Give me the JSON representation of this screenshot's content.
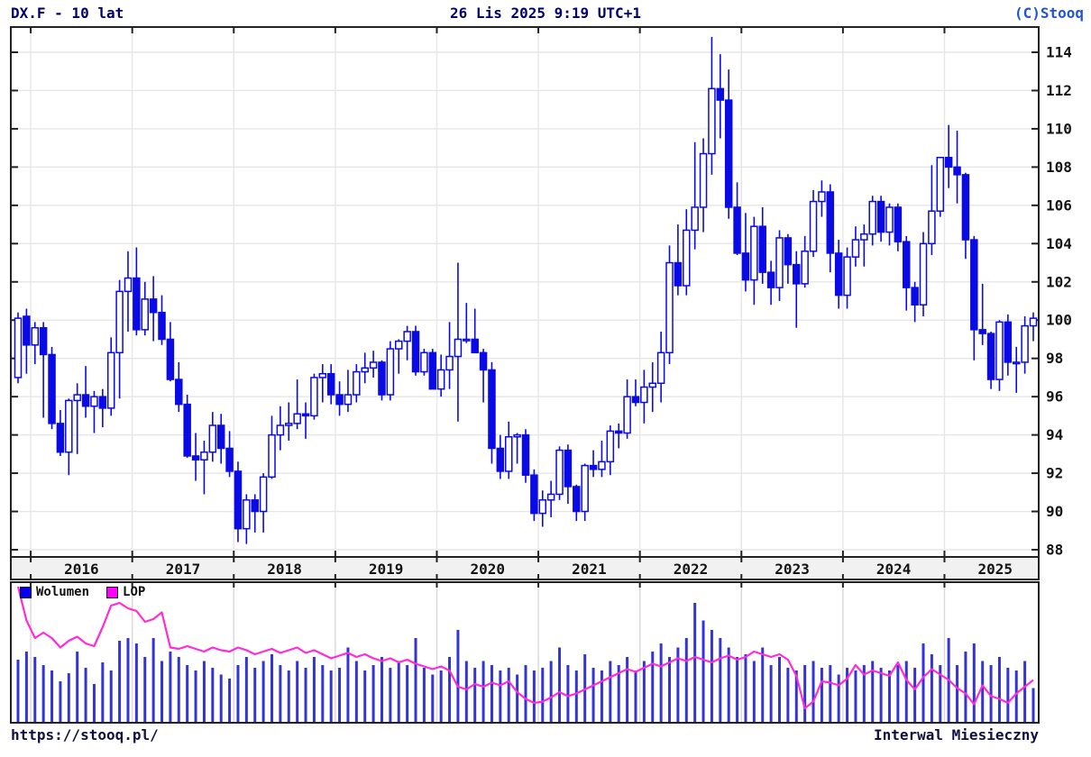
{
  "header": {
    "title": "DX.F - 10 lat",
    "timestamp": "26 Lis 2025 9:19 UTC+1",
    "copyright": "(C)Stooq"
  },
  "legend": {
    "volume_label": "Wolumen",
    "lop_label": "LOP"
  },
  "footer": {
    "url": "https://stooq.pl/",
    "interval": "Interwal Miesieczny"
  },
  "colors": {
    "candle": "#0a0ae6",
    "candle_up_fill": "#ffffff",
    "volume_bar": "#3434d4",
    "lop_line": "#ff2bd6",
    "lop_swatch": "#ff00ff",
    "grid": "#e6e6e6",
    "frame": "#222222",
    "band_bg": "#f1f1f1",
    "header_text": "#00006e",
    "copyright_text": "#2255cc",
    "axis_text": "#141414"
  },
  "chart_data": {
    "type": "candlestick+volume+line",
    "title": "DX.F - 10 lat",
    "interval": "monthly",
    "series_names": [
      "OHLC",
      "Wolumen",
      "LOP"
    ],
    "y_ticks": [
      88,
      90,
      92,
      94,
      96,
      98,
      100,
      102,
      104,
      106,
      108,
      110,
      112,
      114
    ],
    "y_range": [
      87.6,
      115.3
    ],
    "year_labels": [
      "2016",
      "2017",
      "2018",
      "2019",
      "2020",
      "2021",
      "2022",
      "2023",
      "2024",
      "2025"
    ],
    "volume_units": "relative-0-100",
    "lop_units": "relative-0-100",
    "months": [
      {
        "t": "2015-11",
        "o": 97.0,
        "h": 100.4,
        "l": 96.7,
        "c": 100.1,
        "v": 46,
        "lop": 100
      },
      {
        "t": "2015-12",
        "o": 100.2,
        "h": 100.6,
        "l": 97.2,
        "c": 98.7,
        "v": 52,
        "lop": 75
      },
      {
        "t": "2016-01",
        "o": 98.7,
        "h": 99.9,
        "l": 97.7,
        "c": 99.6,
        "v": 48,
        "lop": 62
      },
      {
        "t": "2016-02",
        "o": 99.6,
        "h": 99.9,
        "l": 94.9,
        "c": 98.2,
        "v": 42,
        "lop": 66
      },
      {
        "t": "2016-03",
        "o": 98.2,
        "h": 98.6,
        "l": 94.3,
        "c": 94.6,
        "v": 38,
        "lop": 62
      },
      {
        "t": "2016-04",
        "o": 94.6,
        "h": 95.3,
        "l": 92.9,
        "c": 93.1,
        "v": 30,
        "lop": 55
      },
      {
        "t": "2016-05",
        "o": 93.1,
        "h": 95.9,
        "l": 91.9,
        "c": 95.8,
        "v": 36,
        "lop": 60
      },
      {
        "t": "2016-06",
        "o": 95.8,
        "h": 96.7,
        "l": 93.0,
        "c": 96.1,
        "v": 52,
        "lop": 63
      },
      {
        "t": "2016-07",
        "o": 96.1,
        "h": 97.6,
        "l": 94.9,
        "c": 95.5,
        "v": 40,
        "lop": 58
      },
      {
        "t": "2016-08",
        "o": 95.5,
        "h": 96.3,
        "l": 94.1,
        "c": 96.0,
        "v": 28,
        "lop": 56
      },
      {
        "t": "2016-09",
        "o": 96.0,
        "h": 96.4,
        "l": 94.4,
        "c": 95.4,
        "v": 44,
        "lop": 70
      },
      {
        "t": "2016-10",
        "o": 95.4,
        "h": 99.1,
        "l": 95.0,
        "c": 98.3,
        "v": 38,
        "lop": 86
      },
      {
        "t": "2016-11",
        "o": 98.3,
        "h": 102.1,
        "l": 95.9,
        "c": 101.5,
        "v": 60,
        "lop": 88
      },
      {
        "t": "2016-12",
        "o": 101.5,
        "h": 103.6,
        "l": 99.4,
        "c": 102.2,
        "v": 62,
        "lop": 84
      },
      {
        "t": "2017-01",
        "o": 102.2,
        "h": 103.8,
        "l": 99.2,
        "c": 99.5,
        "v": 58,
        "lop": 82
      },
      {
        "t": "2017-02",
        "o": 99.5,
        "h": 102.0,
        "l": 99.2,
        "c": 101.1,
        "v": 48,
        "lop": 74
      },
      {
        "t": "2017-03",
        "o": 101.1,
        "h": 102.3,
        "l": 98.9,
        "c": 100.4,
        "v": 62,
        "lop": 76
      },
      {
        "t": "2017-04",
        "o": 100.4,
        "h": 101.3,
        "l": 98.7,
        "c": 99.0,
        "v": 45,
        "lop": 81
      },
      {
        "t": "2017-05",
        "o": 99.0,
        "h": 99.9,
        "l": 96.8,
        "c": 96.9,
        "v": 52,
        "lop": 55
      },
      {
        "t": "2017-06",
        "o": 96.9,
        "h": 97.8,
        "l": 95.2,
        "c": 95.6,
        "v": 48,
        "lop": 54
      },
      {
        "t": "2017-07",
        "o": 95.6,
        "h": 96.1,
        "l": 92.8,
        "c": 92.9,
        "v": 42,
        "lop": 56
      },
      {
        "t": "2017-08",
        "o": 92.9,
        "h": 94.1,
        "l": 91.6,
        "c": 92.7,
        "v": 38,
        "lop": 54
      },
      {
        "t": "2017-09",
        "o": 92.7,
        "h": 93.7,
        "l": 90.9,
        "c": 93.1,
        "v": 45,
        "lop": 52
      },
      {
        "t": "2017-10",
        "o": 93.1,
        "h": 95.2,
        "l": 92.6,
        "c": 94.5,
        "v": 40,
        "lop": 55
      },
      {
        "t": "2017-11",
        "o": 94.5,
        "h": 95.1,
        "l": 92.5,
        "c": 93.3,
        "v": 35,
        "lop": 53
      },
      {
        "t": "2017-12",
        "o": 93.3,
        "h": 94.2,
        "l": 91.8,
        "c": 92.1,
        "v": 32,
        "lop": 52
      },
      {
        "t": "2018-01",
        "o": 92.1,
        "h": 92.6,
        "l": 88.4,
        "c": 89.1,
        "v": 42,
        "lop": 55
      },
      {
        "t": "2018-02",
        "o": 89.1,
        "h": 90.9,
        "l": 88.3,
        "c": 90.6,
        "v": 48,
        "lop": 53
      },
      {
        "t": "2018-03",
        "o": 90.6,
        "h": 90.9,
        "l": 88.9,
        "c": 90.0,
        "v": 40,
        "lop": 50
      },
      {
        "t": "2018-04",
        "o": 90.0,
        "h": 92.0,
        "l": 88.9,
        "c": 91.8,
        "v": 45,
        "lop": 52
      },
      {
        "t": "2018-05",
        "o": 91.8,
        "h": 95.0,
        "l": 91.7,
        "c": 94.0,
        "v": 50,
        "lop": 54
      },
      {
        "t": "2018-06",
        "o": 94.0,
        "h": 95.5,
        "l": 93.2,
        "c": 94.5,
        "v": 42,
        "lop": 51
      },
      {
        "t": "2018-07",
        "o": 94.5,
        "h": 95.7,
        "l": 93.7,
        "c": 94.6,
        "v": 38,
        "lop": 53
      },
      {
        "t": "2018-08",
        "o": 94.6,
        "h": 96.9,
        "l": 94.3,
        "c": 95.1,
        "v": 45,
        "lop": 55
      },
      {
        "t": "2018-09",
        "o": 95.1,
        "h": 95.7,
        "l": 93.8,
        "c": 95.0,
        "v": 40,
        "lop": 51
      },
      {
        "t": "2018-10",
        "o": 95.0,
        "h": 97.2,
        "l": 94.8,
        "c": 97.0,
        "v": 48,
        "lop": 53
      },
      {
        "t": "2018-11",
        "o": 97.0,
        "h": 97.7,
        "l": 95.7,
        "c": 97.2,
        "v": 42,
        "lop": 50
      },
      {
        "t": "2018-12",
        "o": 97.2,
        "h": 97.7,
        "l": 95.6,
        "c": 96.1,
        "v": 38,
        "lop": 47
      },
      {
        "t": "2019-01",
        "o": 96.1,
        "h": 96.8,
        "l": 95.0,
        "c": 95.6,
        "v": 40,
        "lop": 49
      },
      {
        "t": "2019-02",
        "o": 95.6,
        "h": 97.4,
        "l": 95.2,
        "c": 96.1,
        "v": 55,
        "lop": 51
      },
      {
        "t": "2019-03",
        "o": 96.1,
        "h": 97.7,
        "l": 95.7,
        "c": 97.3,
        "v": 45,
        "lop": 48
      },
      {
        "t": "2019-04",
        "o": 97.3,
        "h": 98.3,
        "l": 96.7,
        "c": 97.5,
        "v": 38,
        "lop": 50
      },
      {
        "t": "2019-05",
        "o": 97.5,
        "h": 98.4,
        "l": 97.0,
        "c": 97.8,
        "v": 42,
        "lop": 47
      },
      {
        "t": "2019-06",
        "o": 97.8,
        "h": 97.9,
        "l": 95.8,
        "c": 96.1,
        "v": 48,
        "lop": 45
      },
      {
        "t": "2019-07",
        "o": 96.1,
        "h": 98.9,
        "l": 95.8,
        "c": 98.5,
        "v": 40,
        "lop": 47
      },
      {
        "t": "2019-08",
        "o": 98.5,
        "h": 99.0,
        "l": 97.2,
        "c": 98.9,
        "v": 45,
        "lop": 44
      },
      {
        "t": "2019-09",
        "o": 98.9,
        "h": 99.7,
        "l": 97.9,
        "c": 99.4,
        "v": 42,
        "lop": 46
      },
      {
        "t": "2019-10",
        "o": 99.4,
        "h": 99.7,
        "l": 97.1,
        "c": 97.3,
        "v": 62,
        "lop": 43
      },
      {
        "t": "2019-11",
        "o": 97.3,
        "h": 98.5,
        "l": 97.1,
        "c": 98.3,
        "v": 40,
        "lop": 41
      },
      {
        "t": "2019-12",
        "o": 98.3,
        "h": 98.5,
        "l": 96.4,
        "c": 96.4,
        "v": 35,
        "lop": 39
      },
      {
        "t": "2020-01",
        "o": 96.4,
        "h": 98.2,
        "l": 96.0,
        "c": 97.4,
        "v": 38,
        "lop": 41
      },
      {
        "t": "2020-02",
        "o": 97.4,
        "h": 99.9,
        "l": 96.4,
        "c": 98.1,
        "v": 48,
        "lop": 38
      },
      {
        "t": "2020-03",
        "o": 98.1,
        "h": 103.0,
        "l": 94.7,
        "c": 99.0,
        "v": 68,
        "lop": 26
      },
      {
        "t": "2020-04",
        "o": 99.0,
        "h": 100.9,
        "l": 98.8,
        "c": 99.0,
        "v": 45,
        "lop": 24
      },
      {
        "t": "2020-05",
        "o": 99.0,
        "h": 100.6,
        "l": 98.3,
        "c": 98.3,
        "v": 40,
        "lop": 28
      },
      {
        "t": "2020-06",
        "o": 98.3,
        "h": 98.5,
        "l": 95.7,
        "c": 97.4,
        "v": 45,
        "lop": 26
      },
      {
        "t": "2020-07",
        "o": 97.4,
        "h": 97.8,
        "l": 92.5,
        "c": 93.3,
        "v": 42,
        "lop": 29
      },
      {
        "t": "2020-08",
        "o": 93.3,
        "h": 94.0,
        "l": 91.7,
        "c": 92.1,
        "v": 38,
        "lop": 27
      },
      {
        "t": "2020-09",
        "o": 92.1,
        "h": 94.7,
        "l": 91.7,
        "c": 93.9,
        "v": 40,
        "lop": 30
      },
      {
        "t": "2020-10",
        "o": 93.9,
        "h": 94.1,
        "l": 92.5,
        "c": 94.0,
        "v": 35,
        "lop": 22
      },
      {
        "t": "2020-11",
        "o": 94.0,
        "h": 94.3,
        "l": 91.5,
        "c": 91.9,
        "v": 42,
        "lop": 17
      },
      {
        "t": "2020-12",
        "o": 91.9,
        "h": 92.2,
        "l": 89.5,
        "c": 89.9,
        "v": 38,
        "lop": 14
      },
      {
        "t": "2021-01",
        "o": 89.9,
        "h": 91.1,
        "l": 89.2,
        "c": 90.6,
        "v": 40,
        "lop": 15
      },
      {
        "t": "2021-02",
        "o": 90.6,
        "h": 91.6,
        "l": 89.7,
        "c": 90.9,
        "v": 45,
        "lop": 18
      },
      {
        "t": "2021-03",
        "o": 90.9,
        "h": 93.4,
        "l": 90.6,
        "c": 93.2,
        "v": 55,
        "lop": 22
      },
      {
        "t": "2021-04",
        "o": 93.2,
        "h": 93.5,
        "l": 90.4,
        "c": 91.3,
        "v": 42,
        "lop": 19
      },
      {
        "t": "2021-05",
        "o": 91.3,
        "h": 91.4,
        "l": 89.5,
        "c": 90.0,
        "v": 38,
        "lop": 21
      },
      {
        "t": "2021-06",
        "o": 90.0,
        "h": 92.5,
        "l": 89.5,
        "c": 92.4,
        "v": 50,
        "lop": 24
      },
      {
        "t": "2021-07",
        "o": 92.4,
        "h": 93.2,
        "l": 91.8,
        "c": 92.2,
        "v": 40,
        "lop": 27
      },
      {
        "t": "2021-08",
        "o": 92.2,
        "h": 93.7,
        "l": 91.8,
        "c": 92.6,
        "v": 38,
        "lop": 30
      },
      {
        "t": "2021-09",
        "o": 92.6,
        "h": 94.5,
        "l": 91.9,
        "c": 94.2,
        "v": 45,
        "lop": 33
      },
      {
        "t": "2021-10",
        "o": 94.2,
        "h": 94.6,
        "l": 93.3,
        "c": 94.1,
        "v": 42,
        "lop": 36
      },
      {
        "t": "2021-11",
        "o": 94.1,
        "h": 96.9,
        "l": 93.8,
        "c": 96.0,
        "v": 48,
        "lop": 39
      },
      {
        "t": "2021-12",
        "o": 96.0,
        "h": 96.9,
        "l": 95.5,
        "c": 95.7,
        "v": 38,
        "lop": 37
      },
      {
        "t": "2022-01",
        "o": 95.7,
        "h": 97.4,
        "l": 94.6,
        "c": 96.5,
        "v": 45,
        "lop": 40
      },
      {
        "t": "2022-02",
        "o": 96.5,
        "h": 97.8,
        "l": 95.2,
        "c": 96.7,
        "v": 52,
        "lop": 43
      },
      {
        "t": "2022-03",
        "o": 96.7,
        "h": 99.4,
        "l": 95.7,
        "c": 98.3,
        "v": 58,
        "lop": 41
      },
      {
        "t": "2022-04",
        "o": 98.3,
        "h": 103.9,
        "l": 97.7,
        "c": 103.0,
        "v": 48,
        "lop": 44
      },
      {
        "t": "2022-05",
        "o": 103.0,
        "h": 105.0,
        "l": 101.3,
        "c": 101.8,
        "v": 55,
        "lop": 47
      },
      {
        "t": "2022-06",
        "o": 101.8,
        "h": 105.8,
        "l": 101.3,
        "c": 104.7,
        "v": 62,
        "lop": 45
      },
      {
        "t": "2022-07",
        "o": 104.7,
        "h": 109.3,
        "l": 103.7,
        "c": 105.9,
        "v": 88,
        "lop": 48
      },
      {
        "t": "2022-08",
        "o": 105.9,
        "h": 109.5,
        "l": 104.6,
        "c": 108.7,
        "v": 75,
        "lop": 46
      },
      {
        "t": "2022-09",
        "o": 108.7,
        "h": 114.8,
        "l": 107.6,
        "c": 112.1,
        "v": 68,
        "lop": 44
      },
      {
        "t": "2022-10",
        "o": 112.1,
        "h": 113.9,
        "l": 109.5,
        "c": 111.5,
        "v": 62,
        "lop": 47
      },
      {
        "t": "2022-11",
        "o": 111.5,
        "h": 113.1,
        "l": 105.3,
        "c": 105.9,
        "v": 55,
        "lop": 49
      },
      {
        "t": "2022-12",
        "o": 105.9,
        "h": 107.2,
        "l": 103.4,
        "c": 103.5,
        "v": 48,
        "lop": 46
      },
      {
        "t": "2023-01",
        "o": 103.5,
        "h": 105.6,
        "l": 101.5,
        "c": 102.1,
        "v": 50,
        "lop": 48
      },
      {
        "t": "2023-02",
        "o": 102.1,
        "h": 105.4,
        "l": 100.8,
        "c": 104.9,
        "v": 45,
        "lop": 52
      },
      {
        "t": "2023-03",
        "o": 104.9,
        "h": 105.9,
        "l": 101.9,
        "c": 102.5,
        "v": 55,
        "lop": 50
      },
      {
        "t": "2023-04",
        "o": 102.5,
        "h": 103.1,
        "l": 100.8,
        "c": 101.7,
        "v": 42,
        "lop": 48
      },
      {
        "t": "2023-05",
        "o": 101.7,
        "h": 104.7,
        "l": 101.0,
        "c": 104.3,
        "v": 48,
        "lop": 50
      },
      {
        "t": "2023-06",
        "o": 104.3,
        "h": 104.5,
        "l": 101.9,
        "c": 102.9,
        "v": 40,
        "lop": 46
      },
      {
        "t": "2023-07",
        "o": 102.9,
        "h": 103.6,
        "l": 99.6,
        "c": 101.9,
        "v": 38,
        "lop": 34
      },
      {
        "t": "2023-08",
        "o": 101.9,
        "h": 104.4,
        "l": 101.7,
        "c": 103.6,
        "v": 42,
        "lop": 10
      },
      {
        "t": "2023-09",
        "o": 103.6,
        "h": 106.8,
        "l": 103.3,
        "c": 106.2,
        "v": 45,
        "lop": 15
      },
      {
        "t": "2023-10",
        "o": 106.2,
        "h": 107.3,
        "l": 105.4,
        "c": 106.7,
        "v": 40,
        "lop": 30
      },
      {
        "t": "2023-11",
        "o": 106.7,
        "h": 107.1,
        "l": 102.5,
        "c": 103.5,
        "v": 42,
        "lop": 29
      },
      {
        "t": "2023-12",
        "o": 103.5,
        "h": 104.2,
        "l": 100.6,
        "c": 101.3,
        "v": 35,
        "lop": 27
      },
      {
        "t": "2024-01",
        "o": 101.3,
        "h": 103.8,
        "l": 100.6,
        "c": 103.3,
        "v": 40,
        "lop": 32
      },
      {
        "t": "2024-02",
        "o": 103.3,
        "h": 104.9,
        "l": 102.8,
        "c": 104.2,
        "v": 38,
        "lop": 42
      },
      {
        "t": "2024-03",
        "o": 104.2,
        "h": 105.0,
        "l": 102.8,
        "c": 104.5,
        "v": 42,
        "lop": 35
      },
      {
        "t": "2024-04",
        "o": 104.5,
        "h": 106.5,
        "l": 103.9,
        "c": 106.2,
        "v": 45,
        "lop": 38
      },
      {
        "t": "2024-05",
        "o": 106.2,
        "h": 106.5,
        "l": 104.1,
        "c": 104.6,
        "v": 40,
        "lop": 36
      },
      {
        "t": "2024-06",
        "o": 104.6,
        "h": 106.1,
        "l": 103.9,
        "c": 105.9,
        "v": 38,
        "lop": 34
      },
      {
        "t": "2024-07",
        "o": 105.9,
        "h": 106.1,
        "l": 103.6,
        "c": 104.1,
        "v": 42,
        "lop": 44
      },
      {
        "t": "2024-08",
        "o": 104.1,
        "h": 104.4,
        "l": 100.5,
        "c": 101.7,
        "v": 45,
        "lop": 31
      },
      {
        "t": "2024-09",
        "o": 101.7,
        "h": 102.0,
        "l": 99.9,
        "c": 100.8,
        "v": 40,
        "lop": 24
      },
      {
        "t": "2024-10",
        "o": 100.8,
        "h": 104.6,
        "l": 100.2,
        "c": 104.0,
        "v": 58,
        "lop": 33
      },
      {
        "t": "2024-11",
        "o": 104.0,
        "h": 108.1,
        "l": 103.4,
        "c": 105.7,
        "v": 50,
        "lop": 39
      },
      {
        "t": "2024-12",
        "o": 105.7,
        "h": 108.5,
        "l": 105.4,
        "c": 108.5,
        "v": 42,
        "lop": 35
      },
      {
        "t": "2025-01",
        "o": 108.5,
        "h": 110.2,
        "l": 106.9,
        "c": 108.0,
        "v": 62,
        "lop": 31
      },
      {
        "t": "2025-02",
        "o": 108.0,
        "h": 109.9,
        "l": 106.1,
        "c": 107.6,
        "v": 42,
        "lop": 25
      },
      {
        "t": "2025-03",
        "o": 107.6,
        "h": 107.7,
        "l": 103.2,
        "c": 104.2,
        "v": 52,
        "lop": 21
      },
      {
        "t": "2025-04",
        "o": 104.2,
        "h": 104.4,
        "l": 97.9,
        "c": 99.5,
        "v": 58,
        "lop": 13
      },
      {
        "t": "2025-05",
        "o": 99.5,
        "h": 101.9,
        "l": 98.7,
        "c": 99.3,
        "v": 45,
        "lop": 27
      },
      {
        "t": "2025-06",
        "o": 99.3,
        "h": 99.4,
        "l": 96.4,
        "c": 96.9,
        "v": 42,
        "lop": 19
      },
      {
        "t": "2025-07",
        "o": 96.9,
        "h": 100.0,
        "l": 96.3,
        "c": 99.9,
        "v": 48,
        "lop": 17
      },
      {
        "t": "2025-08",
        "o": 99.9,
        "h": 100.3,
        "l": 97.1,
        "c": 97.8,
        "v": 40,
        "lop": 14
      },
      {
        "t": "2025-09",
        "o": 97.8,
        "h": 98.6,
        "l": 96.2,
        "c": 97.8,
        "v": 38,
        "lop": 21
      },
      {
        "t": "2025-10",
        "o": 97.8,
        "h": 100.2,
        "l": 97.2,
        "c": 99.7,
        "v": 45,
        "lop": 26
      },
      {
        "t": "2025-11",
        "o": 99.7,
        "h": 100.4,
        "l": 98.9,
        "c": 100.1,
        "v": 25,
        "lop": 31
      }
    ]
  }
}
